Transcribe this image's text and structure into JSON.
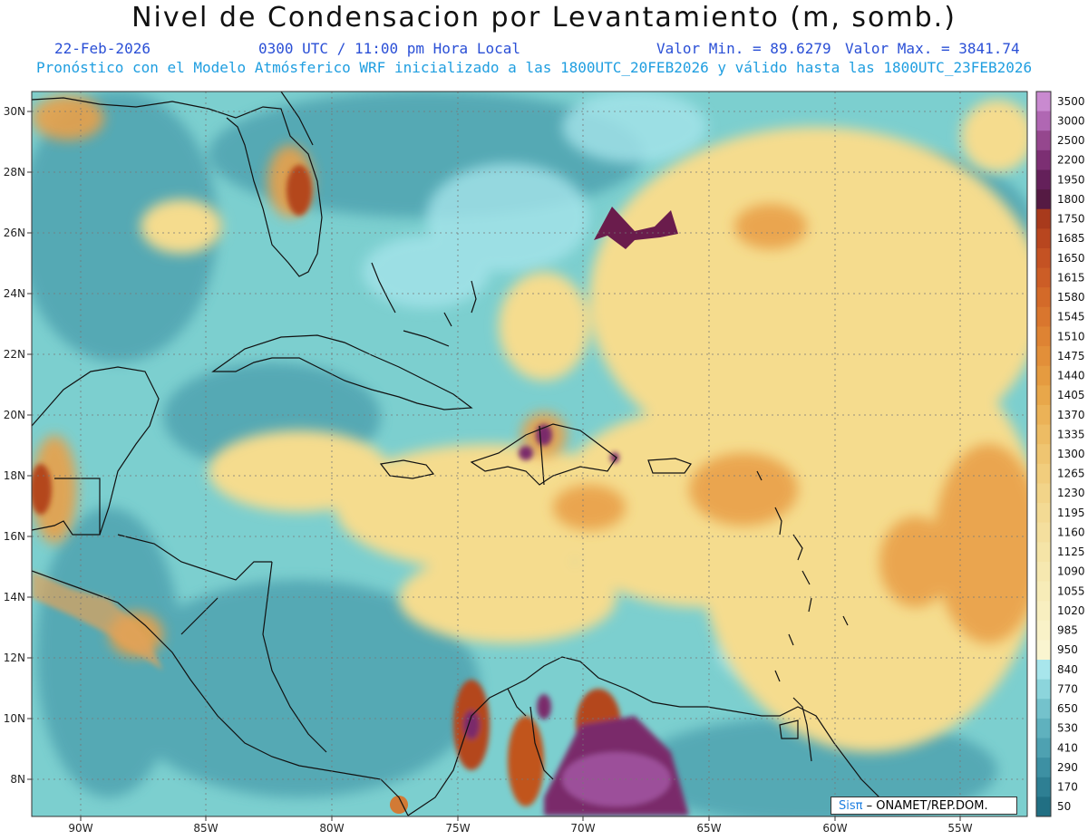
{
  "header": {
    "title": "Nivel de Condensacion por Levantamiento (m, somb.)",
    "date": "22-Feb-2026",
    "time": "0300 UTC / 11:00 pm Hora Local",
    "valmin": "Valor Min. = 89.6279",
    "valmax": "Valor Max. = 3841.74",
    "forecast": "Pronóstico con el Modelo Atmósferico WRF inicializado a las 1800UTC_20FEB2026 y válido hasta las  1800UTC_23FEB2026"
  },
  "map": {
    "lon_range": [
      -92.0,
      -52.5
    ],
    "lat_range": [
      6.7,
      30.6
    ],
    "lat_ticks": [
      "30N",
      "28N",
      "26N",
      "24N",
      "22N",
      "20N",
      "18N",
      "16N",
      "14N",
      "12N",
      "10N",
      "8N"
    ],
    "lon_ticks": [
      "90W",
      "85W",
      "80W",
      "75W",
      "70W",
      "65W",
      "60W",
      "55W"
    ],
    "colors": {
      "ocean_base": "#7ccfcf",
      "land_cool": "#4ea2ae",
      "warm": "#f4d98a",
      "hot": "#e6933a",
      "extreme": "#7a2a5a",
      "border": "#111111"
    }
  },
  "colorbar": {
    "levels": [
      "3500",
      "3000",
      "2500",
      "2200",
      "1950",
      "1800",
      "1750",
      "1685",
      "1650",
      "1615",
      "1580",
      "1545",
      "1510",
      "1475",
      "1440",
      "1405",
      "1370",
      "1335",
      "1300",
      "1265",
      "1230",
      "1195",
      "1160",
      "1125",
      "1090",
      "1055",
      "1020",
      "985",
      "950",
      "840",
      "770",
      "650",
      "530",
      "410",
      "290",
      "170",
      "50"
    ],
    "colors": [
      "#c98ad0",
      "#b067b3",
      "#95478e",
      "#7c2f73",
      "#64205a",
      "#551a43",
      "#a83a1c",
      "#b8461f",
      "#c45223",
      "#cc5d26",
      "#d36a29",
      "#d9762e",
      "#de8333",
      "#e28f39",
      "#e59b40",
      "#e8a74a",
      "#ebb257",
      "#edbc64",
      "#efc571",
      "#f1cd7d",
      "#f2d489",
      "#f3da94",
      "#f4df9e",
      "#f5e4a7",
      "#f6e8b0",
      "#f7ecb8",
      "#f8efc0",
      "#f9f2c8",
      "#faf5d0",
      "#a8e6ec",
      "#8cd5dc",
      "#74c2cc",
      "#5fb1be",
      "#4ea1b1",
      "#3d90a3",
      "#2e7f93",
      "#216f83"
    ]
  },
  "credit": {
    "logo": "Sisπ",
    "text": "– ONAMET/REP.DOM."
  }
}
